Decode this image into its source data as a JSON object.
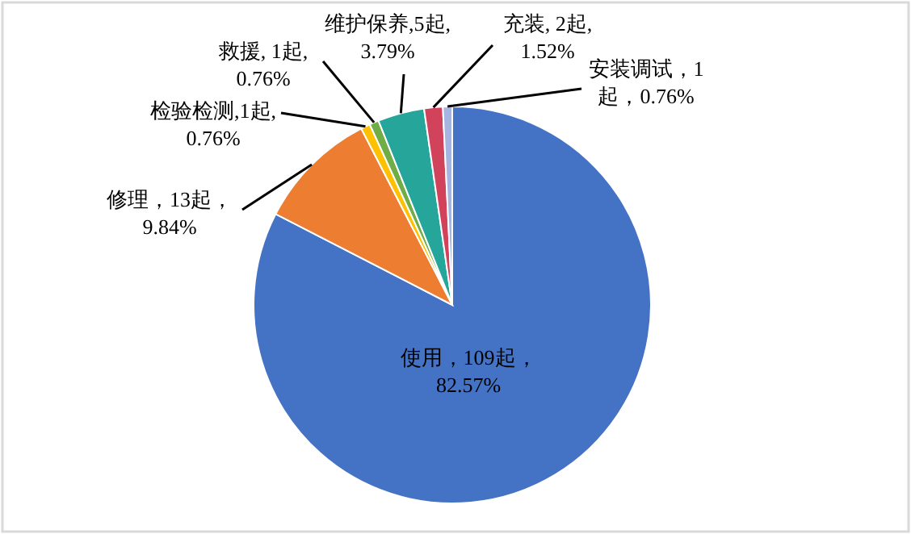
{
  "chart_data": {
    "type": "pie",
    "categories": [
      "使用",
      "修理",
      "检验检测",
      "救援",
      "维护保养",
      "充装",
      "安装调试"
    ],
    "values": [
      109,
      13,
      1,
      1,
      5,
      2,
      1
    ],
    "colors": [
      "#4472c4",
      "#ed7d31",
      "#ffc000",
      "#70ad47",
      "#26a69a",
      "#d0435b",
      "#a5b4e0"
    ],
    "value_labels": [
      "，109起，\n82.57%",
      "，13起，\n9.84%",
      ",1起,\n0.76%",
      ", 1起,\n0.76%",
      ",5起,\n3.79%",
      ", 2起,\n1.52%",
      "，1\n起，0.76%"
    ]
  }
}
